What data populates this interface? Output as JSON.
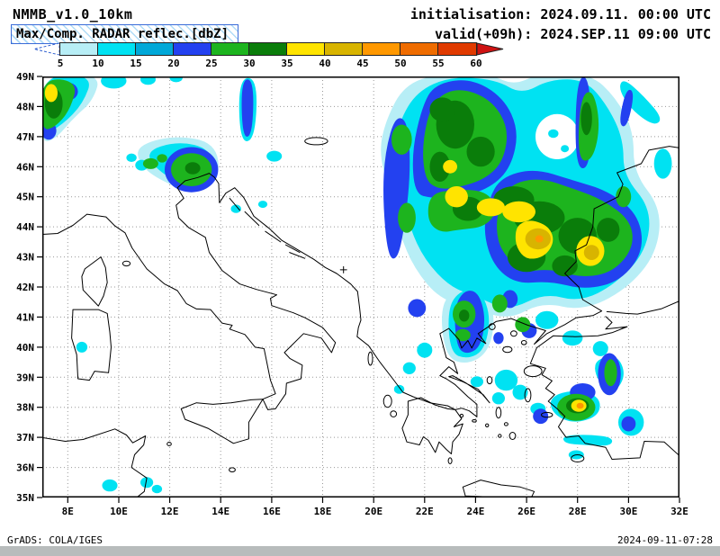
{
  "header": {
    "model_title": "NMMB_v1.0_10km",
    "init_text": "initialisation: 2024.09.11. 00:00 UTC",
    "variable_text": "Max/Comp. RADAR reflec.[dbZ]",
    "valid_text": "valid(+09h): 2024.SEP.11 09:00 UTC"
  },
  "colorbar": {
    "tick_labels": [
      "5",
      "10",
      "15",
      "20",
      "25",
      "30",
      "35",
      "40",
      "45",
      "50",
      "55",
      "60"
    ],
    "segment_colors": [
      "#b7eef6",
      "#00e2f2",
      "#00a8d8",
      "#2341f0",
      "#1db41e",
      "#0a7d0a",
      "#ffe400",
      "#d8b400",
      "#ff9800",
      "#ef6c00",
      "#e03a00"
    ],
    "underflow_color": "#ffffff",
    "overflow_color": "#cf1212",
    "outline_color": "#2f5fd0"
  },
  "map": {
    "lat_labels": [
      "49N",
      "48N",
      "47N",
      "46N",
      "45N",
      "44N",
      "43N",
      "42N",
      "41N",
      "40N",
      "39N",
      "38N",
      "37N",
      "36N",
      "35N"
    ],
    "lon_labels": [
      "8E",
      "10E",
      "12E",
      "14E",
      "16E",
      "18E",
      "20E",
      "22E",
      "24E",
      "26E",
      "28E",
      "30E",
      "32E"
    ],
    "station_marker": "+"
  },
  "footer": {
    "left_text": "GrADS: COLA/IGES",
    "right_text": "2024-09-11-07:28",
    "bar_color": "#b8bcbc"
  }
}
